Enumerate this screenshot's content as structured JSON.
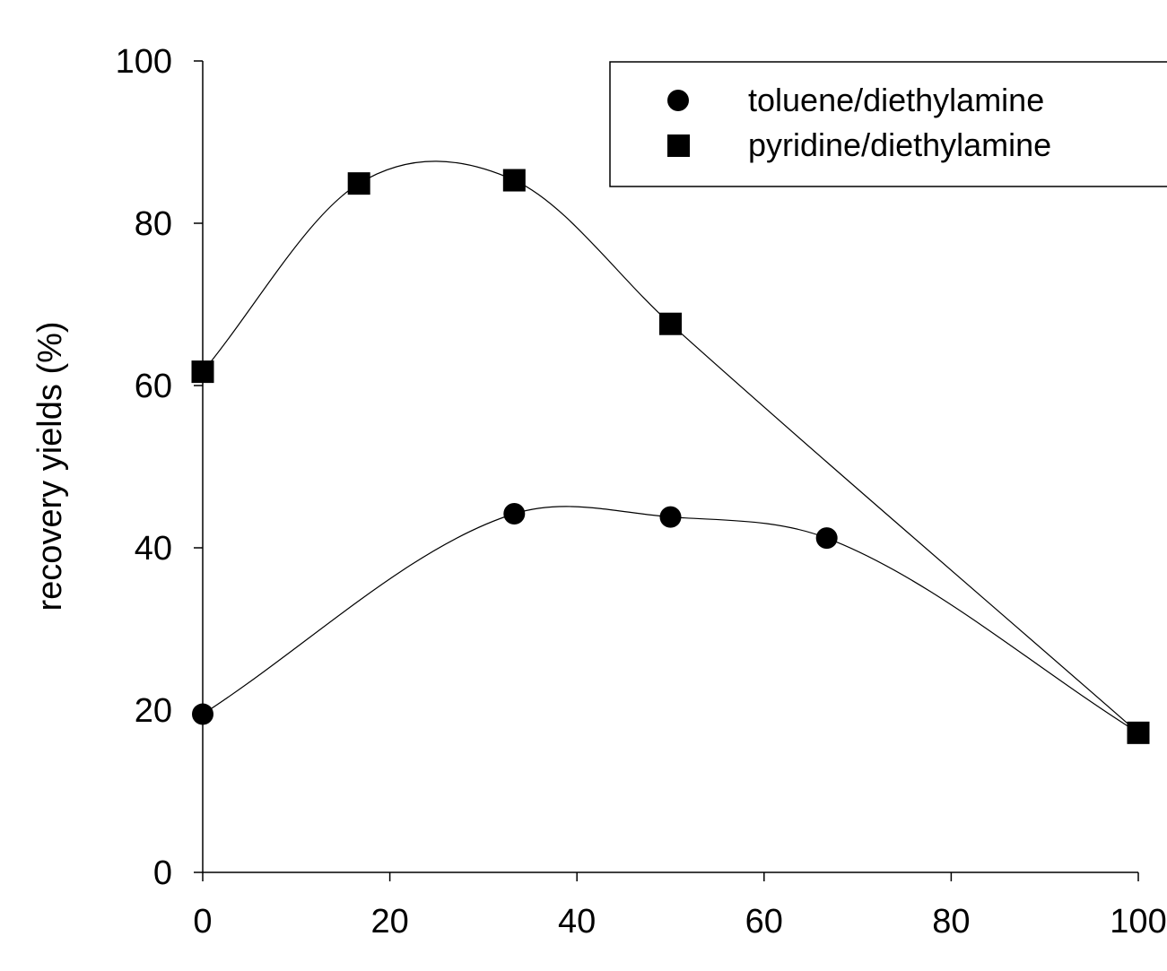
{
  "chart_data": {
    "type": "scatter",
    "title": "",
    "xlabel": "",
    "ylabel": "recovery yields (%)",
    "xlim": [
      0,
      100
    ],
    "ylim": [
      0,
      100
    ],
    "xticks": [
      0,
      20,
      40,
      60,
      80,
      100
    ],
    "yticks": [
      0,
      20,
      40,
      60,
      80,
      100
    ],
    "xtick_labels": [
      "0",
      "20",
      "40",
      "60",
      "80",
      "100"
    ],
    "ytick_labels": [
      "0",
      "20",
      "40",
      "60",
      "80",
      "100"
    ],
    "grid": false,
    "legend_position": "top-right",
    "series": [
      {
        "name": "toluene/diethylamine",
        "marker": "circle",
        "color": "#000000",
        "x": [
          0,
          33.3,
          50,
          66.7,
          100
        ],
        "y": [
          19.5,
          44.2,
          43.8,
          41.2,
          17.2
        ],
        "fit": "smooth-curve"
      },
      {
        "name": "pyridine/diethylamine",
        "marker": "square",
        "color": "#000000",
        "x": [
          0,
          16.7,
          33.3,
          50,
          100
        ],
        "y": [
          61.7,
          84.9,
          85.3,
          67.6,
          17.2
        ],
        "fit": "smooth-curve"
      }
    ]
  }
}
